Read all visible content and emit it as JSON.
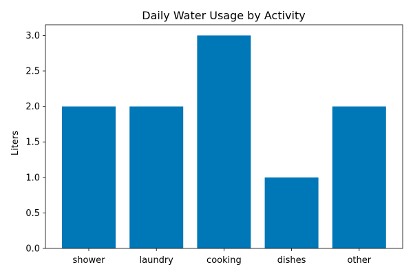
{
  "chart_data": {
    "type": "bar",
    "title": "Daily Water Usage by Activity",
    "xlabel": "",
    "ylabel": "Liters",
    "categories": [
      "shower",
      "laundry",
      "cooking",
      "dishes",
      "other"
    ],
    "values": [
      2,
      2,
      3,
      1,
      2
    ],
    "ylim": [
      0,
      3.15
    ],
    "yticks": [
      "0.0",
      "0.5",
      "1.0",
      "1.5",
      "2.0",
      "2.5",
      "3.0"
    ],
    "bar_color": "#0077b6",
    "grid": false,
    "legend": "none"
  }
}
